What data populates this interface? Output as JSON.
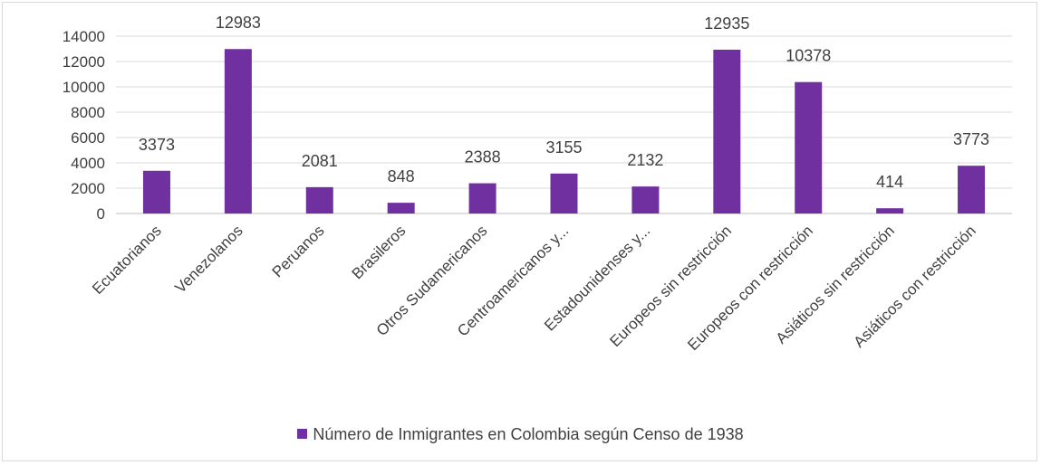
{
  "chart_data": {
    "type": "bar",
    "title": "",
    "xlabel": "",
    "ylabel": "",
    "categories": [
      "Ecuatorianos",
      "Venezolanos",
      "Peruanos",
      "Brasileros",
      "Otros Sudamericanos",
      "Centroamericanos y...",
      "Estadounidenses y...",
      "Europeos sin restricción",
      "Europeos con restricción",
      "Asiáticos sin restricción",
      "Asiáticos con restricción"
    ],
    "series": [
      {
        "name": "Número de Inmigrantes en Colombia según Censo de 1938",
        "values": [
          3373,
          12983,
          2081,
          848,
          2388,
          3155,
          2132,
          12935,
          10378,
          414,
          3773
        ],
        "color": "#7030a0"
      }
    ],
    "y_ticks": [
      "0",
      "2000",
      "4000",
      "6000",
      "8000",
      "10000",
      "12000",
      "14000"
    ],
    "ylim": [
      0,
      14000
    ],
    "grid": true,
    "legend_position": "bottom",
    "data_labels": true
  }
}
